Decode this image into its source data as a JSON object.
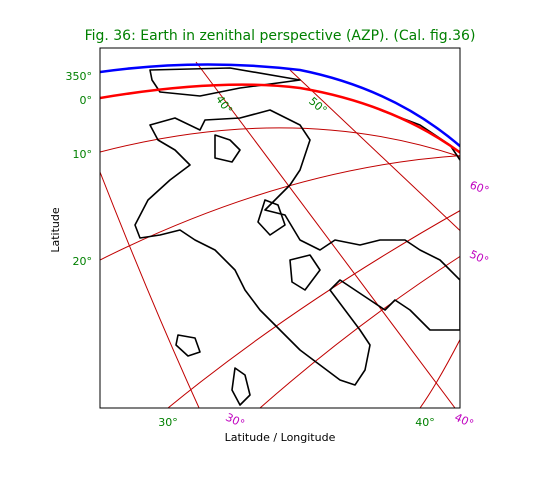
{
  "title": "Fig. 36: Earth in zenithal perspective (AZP). (Cal. fig.36)",
  "x_label": "Latitude / Longitude",
  "y_label": "Latitude",
  "left_ticks": [
    "350°",
    "0°",
    "10°",
    "20°"
  ],
  "bottom_ticks": [
    "30°",
    "40°"
  ],
  "right_ticks": [
    "60°",
    "50°"
  ],
  "bottom_right_ticks": [
    "30°",
    "40°"
  ],
  "inner_labels": [
    "40°",
    "50°"
  ]
}
